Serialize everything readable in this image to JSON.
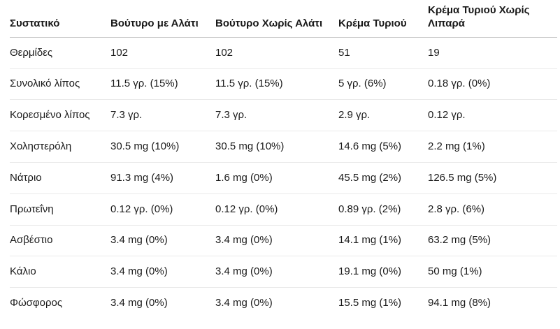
{
  "colors": {
    "background": "#ffffff",
    "text": "#1a1a1a",
    "header_border": "#c6c6c6",
    "row_border": "#e9e9e9"
  },
  "chart_data": {
    "type": "table",
    "columns": [
      "Συστατικό",
      "Βούτυρο με Αλάτι",
      "Βούτυρο Χωρίς Αλάτι",
      "Κρέμα Τυριού",
      "Κρέμα Τυριού Χωρίς Λιπαρά"
    ],
    "rows": [
      {
        "label": "Θερμίδες",
        "values": [
          "102",
          "102",
          "51",
          "19"
        ]
      },
      {
        "label": "Συνολικό λίπος",
        "values": [
          "11.5 γρ. (15%)",
          "11.5 γρ. (15%)",
          "5 γρ. (6%)",
          "0.18 γρ. (0%)"
        ]
      },
      {
        "label": "Κορεσμένο λίπος",
        "values": [
          "7.3 γρ.",
          "7.3 γρ.",
          "2.9 γρ.",
          "0.12 γρ."
        ]
      },
      {
        "label": "Χοληστερόλη",
        "values": [
          "30.5 mg (10%)",
          "30.5 mg (10%)",
          "14.6 mg (5%)",
          "2.2 mg (1%)"
        ]
      },
      {
        "label": "Νάτριο",
        "values": [
          "91.3 mg (4%)",
          "1.6 mg (0%)",
          "45.5 mg (2%)",
          "126.5 mg (5%)"
        ]
      },
      {
        "label": "Πρωτεΐνη",
        "values": [
          "0.12 γρ. (0%)",
          "0.12 γρ. (0%)",
          "0.89 γρ. (2%)",
          "2.8 γρ. (6%)"
        ]
      },
      {
        "label": "Ασβέστιο",
        "values": [
          "3.4 mg (0%)",
          "3.4 mg (0%)",
          "14.1 mg (1%)",
          "63.2 mg (5%)"
        ]
      },
      {
        "label": "Κάλιο",
        "values": [
          "3.4 mg (0%)",
          "3.4 mg (0%)",
          "19.1 mg (0%)",
          "50 mg (1%)"
        ]
      },
      {
        "label": "Φώσφορος",
        "values": [
          "3.4 mg (0%)",
          "3.4 mg (0%)",
          "15.5 mg (1%)",
          "94.1 mg (8%)"
        ]
      }
    ]
  }
}
